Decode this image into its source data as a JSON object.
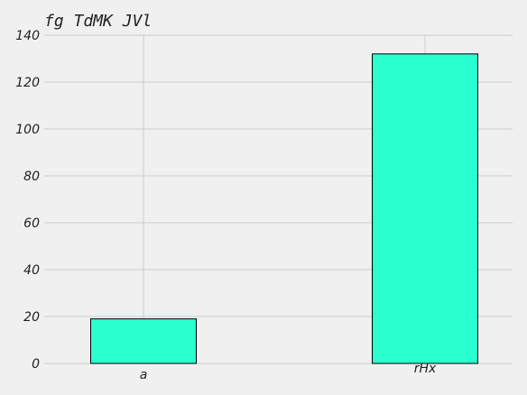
{
  "chart_data": {
    "type": "bar",
    "title": "fg TdMK  JVl",
    "xlabel": "",
    "ylabel": "",
    "categories": [
      "a",
      "rHx"
    ],
    "values": [
      19,
      132
    ],
    "ylim": [
      0,
      140
    ],
    "yticks": [
      0,
      20,
      40,
      60,
      80,
      100,
      120,
      140
    ],
    "grid": true,
    "legend": "none",
    "colors": {
      "bar": "#2affd0",
      "bar_edge": "#000000",
      "background": "#f0f0f0",
      "grid": "#cbcbcb",
      "text": "#222222"
    }
  }
}
